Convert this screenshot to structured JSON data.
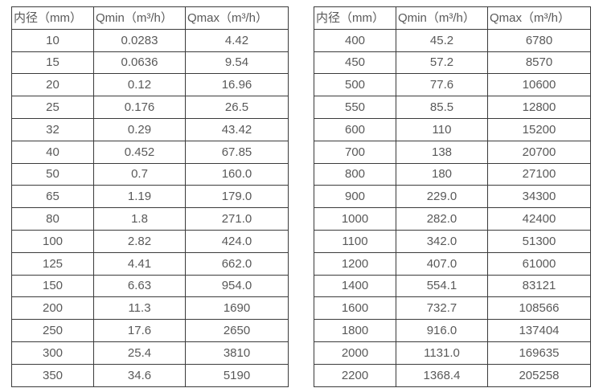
{
  "colors": {
    "background": "#ffffff",
    "border": "#3b3b3b",
    "text": "#595959"
  },
  "tables": [
    {
      "name": "flow-table-small-diameters",
      "headers": [
        "内径（mm）",
        "Qmin（m³/h）",
        "Qmax（m³/h）"
      ],
      "rows": [
        [
          "10",
          "0.0283",
          "4.42"
        ],
        [
          "15",
          "0.0636",
          "9.54"
        ],
        [
          "20",
          "0.12",
          "16.96"
        ],
        [
          "25",
          "0.176",
          "26.5"
        ],
        [
          "32",
          "0.29",
          "43.42"
        ],
        [
          "40",
          "0.452",
          "67.85"
        ],
        [
          "50",
          "0.7",
          "160.0"
        ],
        [
          "65",
          "1.19",
          "179.0"
        ],
        [
          "80",
          "1.8",
          "271.0"
        ],
        [
          "100",
          "2.82",
          "424.0"
        ],
        [
          "125",
          "4.41",
          "662.0"
        ],
        [
          "150",
          "6.63",
          "954.0"
        ],
        [
          "200",
          "11.3",
          "1690"
        ],
        [
          "250",
          "17.6",
          "2650"
        ],
        [
          "300",
          "25.4",
          "3810"
        ],
        [
          "350",
          "34.6",
          "5190"
        ]
      ]
    },
    {
      "name": "flow-table-large-diameters",
      "headers": [
        "内径（mm）",
        "Qmin（m³/h）",
        "Qmax（m³/h）"
      ],
      "rows": [
        [
          "400",
          "45.2",
          "6780"
        ],
        [
          "450",
          "57.2",
          "8570"
        ],
        [
          "500",
          "77.6",
          "10600"
        ],
        [
          "550",
          "85.5",
          "12800"
        ],
        [
          "600",
          "110",
          "15200"
        ],
        [
          "700",
          "138",
          "20700"
        ],
        [
          "800",
          "180",
          "27100"
        ],
        [
          "900",
          "229.0",
          "34300"
        ],
        [
          "1000",
          "282.0",
          "42400"
        ],
        [
          "1100",
          "342.0",
          "51300"
        ],
        [
          "1200",
          "407.0",
          "61000"
        ],
        [
          "1400",
          "554.1",
          "83121"
        ],
        [
          "1600",
          "732.7",
          "108566"
        ],
        [
          "1800",
          "916.0",
          "137404"
        ],
        [
          "2000",
          "1131.0",
          "169635"
        ],
        [
          "2200",
          "1368.4",
          "205258"
        ]
      ]
    }
  ]
}
